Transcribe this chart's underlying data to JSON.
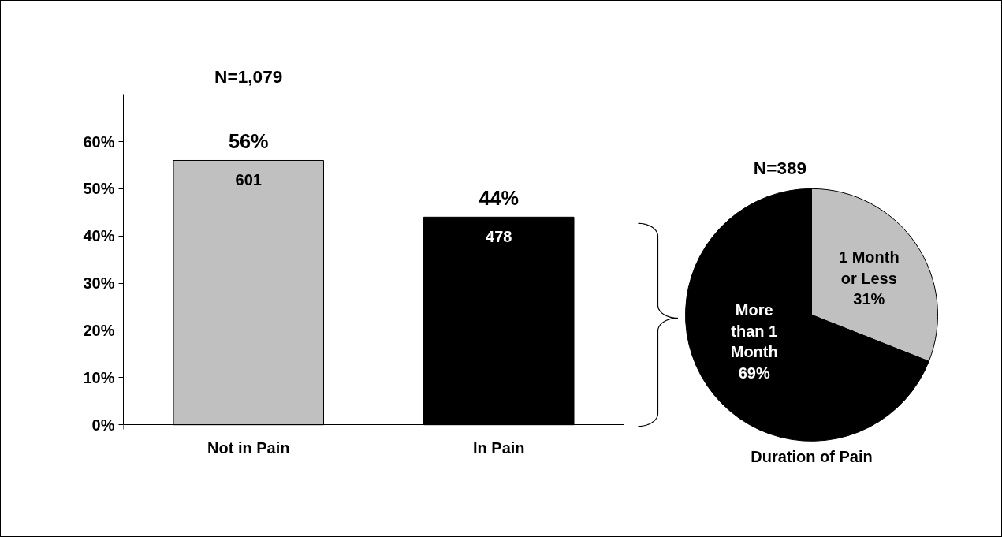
{
  "chart_data": [
    {
      "type": "bar",
      "title": "N=1,079",
      "categories": [
        "Not in Pain",
        "In Pain"
      ],
      "values": [
        56,
        44
      ],
      "colors": [
        "#c0c0c0",
        "#000000"
      ],
      "value_labels": [
        "56%",
        "44%"
      ],
      "annotations": [
        "601",
        "478"
      ],
      "ylim": [
        0,
        70
      ],
      "yticks": [
        {
          "value": 0,
          "label": "0%"
        },
        {
          "value": 10,
          "label": "10%"
        },
        {
          "value": 20,
          "label": "20%"
        },
        {
          "value": 30,
          "label": "30%"
        },
        {
          "value": 40,
          "label": "40%"
        },
        {
          "value": 50,
          "label": "50%"
        },
        {
          "value": 60,
          "label": "60%"
        }
      ],
      "grid": false
    },
    {
      "type": "pie",
      "title": "N=389",
      "xlabel": "Duration of Pain",
      "categories": [
        "1 Month or Less",
        "More than 1 Month"
      ],
      "values": [
        31,
        69
      ],
      "colors": [
        "#c0c0c0",
        "#000000"
      ],
      "value_labels": [
        "31%",
        "69%"
      ]
    }
  ]
}
